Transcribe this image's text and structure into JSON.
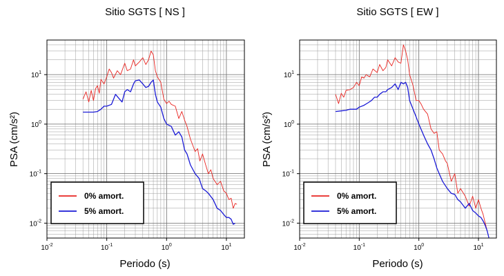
{
  "chart_data": [
    {
      "type": "line",
      "title": "Sitio SGTS [ NS ]",
      "xlabel": "Periodo (s)",
      "ylabel": "PSA (cm/s²)",
      "xscale": "log",
      "yscale": "log",
      "xlim": [
        0.01,
        20
      ],
      "ylim": [
        0.005,
        50
      ],
      "x_ticks": [
        {
          "base": "10",
          "exp": "-2",
          "value": 0.01
        },
        {
          "base": "10",
          "exp": "-1",
          "value": 0.1
        },
        {
          "base": "10",
          "exp": "0",
          "value": 1
        },
        {
          "base": "10",
          "exp": "1",
          "value": 10
        }
      ],
      "y_ticks": [
        {
          "base": "10",
          "exp": "-2",
          "value": 0.01
        },
        {
          "base": "10",
          "exp": "-1",
          "value": 0.1
        },
        {
          "base": "10",
          "exp": "0",
          "value": 1
        },
        {
          "base": "10",
          "exp": "1",
          "value": 10
        }
      ],
      "grid": true,
      "legend_position": "bottom-left",
      "series": [
        {
          "name": "0% amort.",
          "color": "#e8231f",
          "x": [
            0.04,
            0.045,
            0.05,
            0.055,
            0.06,
            0.065,
            0.07,
            0.075,
            0.08,
            0.09,
            0.1,
            0.11,
            0.12,
            0.13,
            0.15,
            0.17,
            0.2,
            0.22,
            0.25,
            0.28,
            0.3,
            0.35,
            0.4,
            0.45,
            0.5,
            0.55,
            0.6,
            0.65,
            0.7,
            0.8,
            0.9,
            1.0,
            1.1,
            1.2,
            1.4,
            1.6,
            1.8,
            2.0,
            2.2,
            2.5,
            2.8,
            3.0,
            3.3,
            3.6,
            4.0,
            4.5,
            5.0,
            5.5,
            6.0,
            7.0,
            8.0,
            9.0,
            10,
            11,
            12,
            13,
            14,
            15
          ],
          "y": [
            3.2,
            4.5,
            2.8,
            4.8,
            3.0,
            5.2,
            6.0,
            4.2,
            8.0,
            6.5,
            9.0,
            13,
            11,
            8.5,
            12,
            10,
            17,
            12,
            13,
            20,
            15,
            18,
            22,
            16,
            20,
            30,
            25,
            12,
            9.0,
            7.0,
            3.2,
            2.6,
            2.9,
            2.5,
            2.3,
            1.3,
            1.8,
            1.2,
            0.9,
            0.5,
            0.35,
            0.28,
            0.32,
            0.18,
            0.25,
            0.15,
            0.1,
            0.12,
            0.08,
            0.06,
            0.07,
            0.045,
            0.04,
            0.03,
            0.032,
            0.02,
            0.025,
            0.024
          ]
        },
        {
          "name": "5% amort.",
          "color": "#1a1ad6",
          "x": [
            0.04,
            0.05,
            0.06,
            0.07,
            0.08,
            0.09,
            0.1,
            0.12,
            0.14,
            0.16,
            0.18,
            0.2,
            0.22,
            0.25,
            0.28,
            0.3,
            0.35,
            0.4,
            0.45,
            0.5,
            0.55,
            0.6,
            0.65,
            0.7,
            0.8,
            0.9,
            1.0,
            1.2,
            1.4,
            1.6,
            1.8,
            2.0,
            2.2,
            2.5,
            3.0,
            3.5,
            4.0,
            4.5,
            5.0,
            6.0,
            7.0,
            8.0,
            9.0,
            10,
            11,
            12,
            13,
            14
          ],
          "y": [
            1.75,
            1.75,
            1.75,
            1.8,
            2.0,
            2.3,
            2.3,
            2.5,
            4.0,
            3.3,
            2.8,
            4.5,
            5.0,
            4.5,
            6.5,
            7.5,
            7.8,
            6.5,
            5.5,
            5.8,
            7.0,
            7.8,
            4.0,
            2.8,
            2.2,
            1.3,
            1.0,
            0.9,
            0.6,
            0.7,
            0.55,
            0.3,
            0.25,
            0.15,
            0.1,
            0.08,
            0.05,
            0.045,
            0.04,
            0.03,
            0.02,
            0.018,
            0.015,
            0.013,
            0.013,
            0.012,
            0.0095,
            0.01
          ]
        }
      ]
    },
    {
      "type": "line",
      "title": "Sitio SGTS [ EW ]",
      "xlabel": "Periodo (s)",
      "ylabel": "PSA (cm/s²)",
      "xscale": "log",
      "yscale": "log",
      "xlim": [
        0.01,
        20
      ],
      "ylim": [
        0.005,
        50
      ],
      "x_ticks": [
        {
          "base": "10",
          "exp": "-2",
          "value": 0.01
        },
        {
          "base": "10",
          "exp": "-1",
          "value": 0.1
        },
        {
          "base": "10",
          "exp": "0",
          "value": 1
        },
        {
          "base": "10",
          "exp": "1",
          "value": 10
        }
      ],
      "y_ticks": [
        {
          "base": "10",
          "exp": "-2",
          "value": 0.01
        },
        {
          "base": "10",
          "exp": "-1",
          "value": 0.1
        },
        {
          "base": "10",
          "exp": "0",
          "value": 1
        },
        {
          "base": "10",
          "exp": "1",
          "value": 10
        }
      ],
      "grid": true,
      "legend_position": "bottom-left",
      "series": [
        {
          "name": "0% amort.",
          "color": "#e8231f",
          "x": [
            0.04,
            0.045,
            0.05,
            0.055,
            0.06,
            0.07,
            0.08,
            0.09,
            0.1,
            0.11,
            0.12,
            0.13,
            0.15,
            0.17,
            0.2,
            0.22,
            0.25,
            0.28,
            0.3,
            0.35,
            0.4,
            0.45,
            0.5,
            0.55,
            0.6,
            0.65,
            0.7,
            0.8,
            0.9,
            1.0,
            1.1,
            1.2,
            1.4,
            1.6,
            1.8,
            2.0,
            2.2,
            2.5,
            2.8,
            3.0,
            3.5,
            4.0,
            4.5,
            5.0,
            6.0,
            7.0,
            8.0,
            9.0,
            10,
            11,
            12,
            13,
            14
          ],
          "y": [
            4.0,
            2.6,
            4.2,
            3.5,
            4.8,
            5.0,
            5.5,
            7.0,
            6.0,
            9.0,
            8.5,
            10,
            9.0,
            13,
            11,
            16,
            12,
            14,
            20,
            15,
            22,
            18,
            17,
            40,
            30,
            20,
            10,
            6.0,
            3.0,
            3.0,
            2.5,
            2.0,
            1.6,
            0.8,
            0.65,
            0.7,
            0.3,
            0.25,
            0.18,
            0.16,
            0.07,
            0.1,
            0.04,
            0.05,
            0.035,
            0.022,
            0.035,
            0.02,
            0.03,
            0.02,
            0.015,
            0.01,
            0.007
          ]
        },
        {
          "name": "5% amort.",
          "color": "#1a1ad6",
          "x": [
            0.04,
            0.05,
            0.06,
            0.07,
            0.08,
            0.09,
            0.1,
            0.12,
            0.14,
            0.16,
            0.18,
            0.2,
            0.22,
            0.25,
            0.28,
            0.3,
            0.35,
            0.4,
            0.45,
            0.5,
            0.55,
            0.6,
            0.65,
            0.7,
            0.8,
            0.9,
            1.0,
            1.2,
            1.4,
            1.6,
            1.8,
            2.0,
            2.2,
            2.5,
            3.0,
            3.5,
            4.0,
            4.5,
            5.0,
            6.0,
            7.0,
            8.0,
            9.0,
            10,
            11,
            12,
            13,
            14,
            15
          ],
          "y": [
            1.8,
            1.85,
            1.9,
            2.0,
            2.0,
            2.0,
            2.2,
            2.4,
            2.7,
            3.0,
            3.5,
            3.5,
            4.0,
            4.5,
            4.5,
            5.0,
            5.5,
            6.5,
            5.0,
            7.0,
            6.5,
            7.0,
            5.5,
            3.0,
            2.0,
            1.4,
            1.0,
            0.6,
            0.4,
            0.3,
            0.2,
            0.13,
            0.1,
            0.07,
            0.05,
            0.04,
            0.038,
            0.03,
            0.027,
            0.02,
            0.025,
            0.018,
            0.016,
            0.014,
            0.013,
            0.011,
            0.009,
            0.007,
            0.005
          ]
        }
      ]
    }
  ]
}
